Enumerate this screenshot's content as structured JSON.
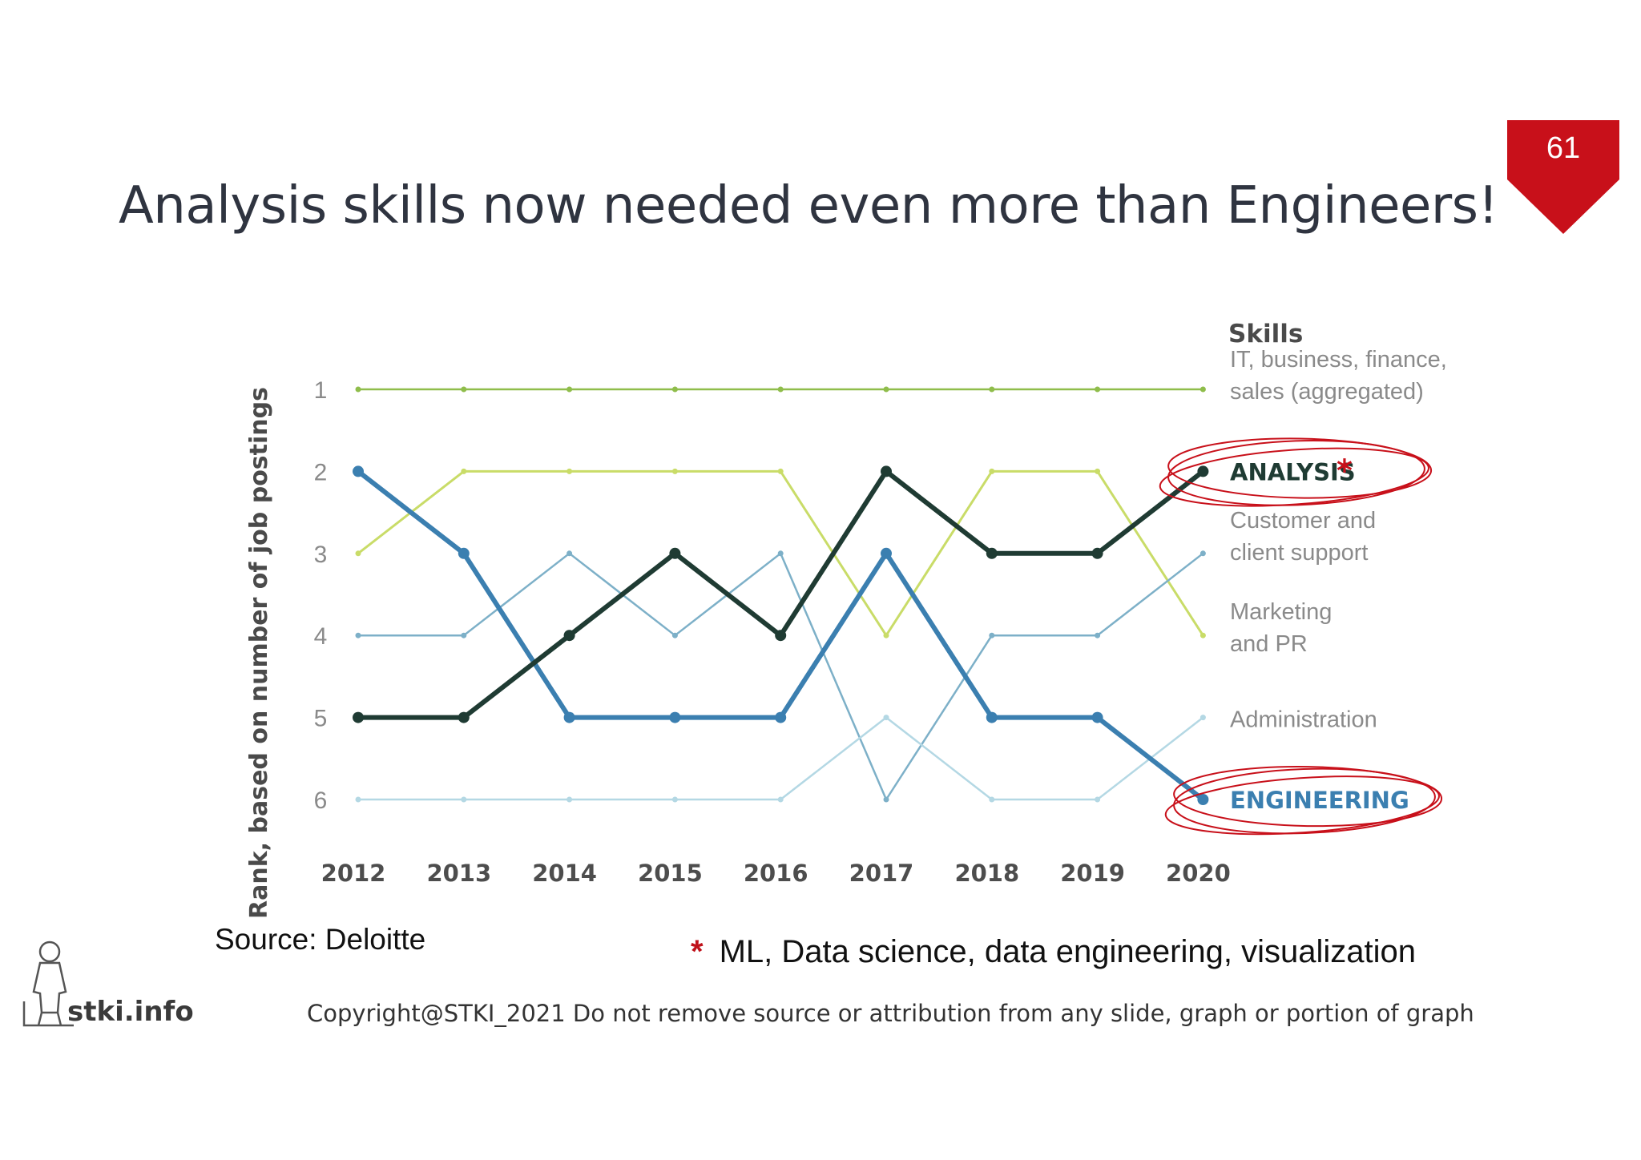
{
  "slide": {
    "title": "Analysis skills now needed even more than Engineers!",
    "page_number": "61",
    "source": "Source: Deloitte",
    "footnote_mark": "*",
    "footnote": "ML, Data science, data engineering, visualization",
    "copyright": "Copyright@STKI_2021 Do not remove source or attribution from any slide, graph or portion of graph",
    "logo_text": "stki.info",
    "accent_color": "#c8101a"
  },
  "chart_data": {
    "type": "line",
    "title": "",
    "xlabel": "",
    "ylabel": "Rank, based on number of job postings",
    "legend_title": "Skills",
    "x": [
      "2012",
      "2013",
      "2014",
      "2015",
      "2016",
      "2017",
      "2018",
      "2019",
      "2020"
    ],
    "y_ticks": [
      "1",
      "2",
      "3",
      "4",
      "5",
      "6"
    ],
    "ylim": [
      1,
      6
    ],
    "y_inverted": true,
    "grid": false,
    "legend_placement": "right",
    "series": [
      {
        "name": "IT, business, finance, sales (aggregated)",
        "label_lines": [
          "IT, business, finance,",
          "sales (aggregated)"
        ],
        "values": [
          1,
          1,
          1,
          1,
          1,
          1,
          1,
          1,
          1
        ],
        "color": "#8fbd4b",
        "width": 2.5,
        "markers": "small",
        "label_color": "#8a8a8a",
        "label_bold": false
      },
      {
        "name": "Marketing and PR",
        "label_lines": [
          "Marketing",
          "and PR"
        ],
        "values": [
          3,
          2,
          2,
          2,
          2,
          4,
          2,
          2,
          4
        ],
        "color": "#c9dc68",
        "width": 3,
        "markers": "small",
        "label_color": "#8a8a8a",
        "label_bold": false
      },
      {
        "name": "Customer and client support",
        "label_lines": [
          "Customer and",
          "client support"
        ],
        "values": [
          4,
          4,
          3,
          4,
          3,
          6,
          4,
          4,
          3
        ],
        "color": "#7db0c8",
        "width": 2.5,
        "markers": "small",
        "label_color": "#8a8a8a",
        "label_bold": false
      },
      {
        "name": "Administration",
        "label_lines": [
          "Administration"
        ],
        "values": [
          6,
          6,
          6,
          6,
          6,
          5,
          6,
          6,
          5
        ],
        "color": "#b4d8e4",
        "width": 2.5,
        "markers": "small",
        "label_color": "#8a8a8a",
        "label_bold": false
      },
      {
        "name": "ENGINEERING",
        "label_lines": [
          "ENGINEERING"
        ],
        "values": [
          2,
          3,
          5,
          5,
          5,
          3,
          5,
          5,
          6
        ],
        "color": "#3b7fb0",
        "width": 6,
        "markers": "large",
        "label_color": "#3b7fb0",
        "label_bold": true,
        "circled": true
      },
      {
        "name": "ANALYSIS",
        "label_lines": [
          "ANALYSIS"
        ],
        "values": [
          5,
          5,
          4,
          3,
          4,
          2,
          3,
          3,
          2
        ],
        "color": "#1f3b33",
        "width": 6,
        "markers": "large",
        "label_color": "#1f3b33",
        "label_bold": true,
        "circled": true,
        "starred": true
      }
    ]
  }
}
